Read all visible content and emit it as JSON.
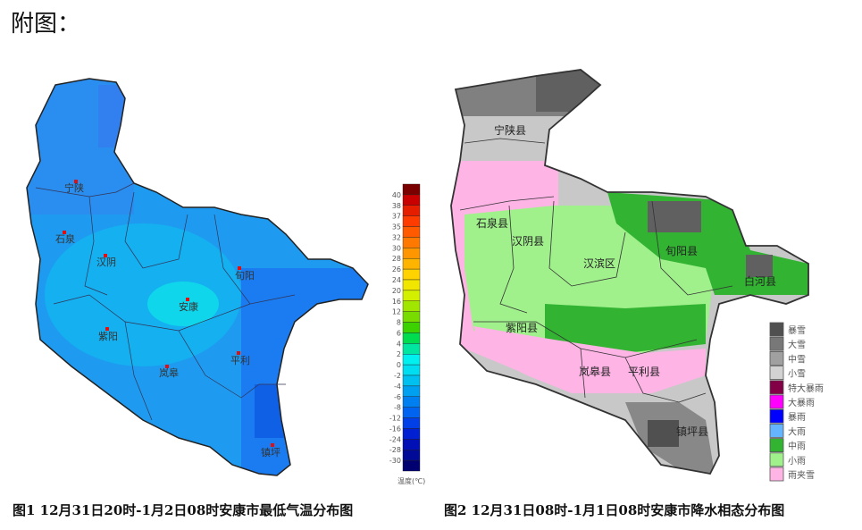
{
  "heading": "附图：",
  "figure1": {
    "caption": "图1  12月31日20时-1月2日08时安康市最低气温分布图",
    "stations": [
      "宁陕",
      "石泉",
      "汉阴",
      "旬阳",
      "安康",
      "紫阳",
      "平利",
      "岚皋",
      "镇坪"
    ],
    "legend_title": "温度(℃)",
    "legend_ticks": [
      "40",
      "38",
      "37",
      "35",
      "32",
      "30",
      "28",
      "26",
      "24",
      "20",
      "16",
      "12",
      "8",
      "6",
      "4",
      "2",
      "0",
      "-2",
      "-4",
      "-6",
      "-8",
      "-12",
      "-16",
      "-24",
      "-28",
      "-30"
    ],
    "legend_colors": [
      "#7a0000",
      "#c80000",
      "#e61e00",
      "#ff3c00",
      "#ff5a00",
      "#ff7800",
      "#ff9600",
      "#ffb400",
      "#ffd200",
      "#f0e600",
      "#d2f000",
      "#a0e600",
      "#78dc00",
      "#3cd200",
      "#00dc50",
      "#00e6a0",
      "#00f0f0",
      "#00dcf0",
      "#00c0f0",
      "#00a0f0",
      "#0080f0",
      "#0064f0",
      "#0040e6",
      "#0020d2",
      "#0010b4",
      "#000a96",
      "#000070"
    ]
  },
  "figure2": {
    "caption": "图2  12月31日08时-1月1日08时安康市降水相态分布图",
    "counties": [
      "宁陕县",
      "石泉县",
      "汉阴县",
      "汉滨区",
      "旬阳县",
      "白河县",
      "紫阳县",
      "岚皋县",
      "平利县",
      "镇坪县"
    ],
    "legend": [
      {
        "label": "暴雪",
        "color": "#505050"
      },
      {
        "label": "大雪",
        "color": "#787878"
      },
      {
        "label": "中雪",
        "color": "#a0a0a0"
      },
      {
        "label": "小雪",
        "color": "#d2d2d2"
      },
      {
        "label": "特大暴雨",
        "color": "#820046"
      },
      {
        "label": "大暴雨",
        "color": "#ff00ff"
      },
      {
        "label": "暴雨",
        "color": "#0000ff"
      },
      {
        "label": "大雨",
        "color": "#64b4ff"
      },
      {
        "label": "中雨",
        "color": "#32b432"
      },
      {
        "label": "小雨",
        "color": "#a0f08c"
      },
      {
        "label": "雨夹雪",
        "color": "#ffb4e6"
      }
    ]
  }
}
